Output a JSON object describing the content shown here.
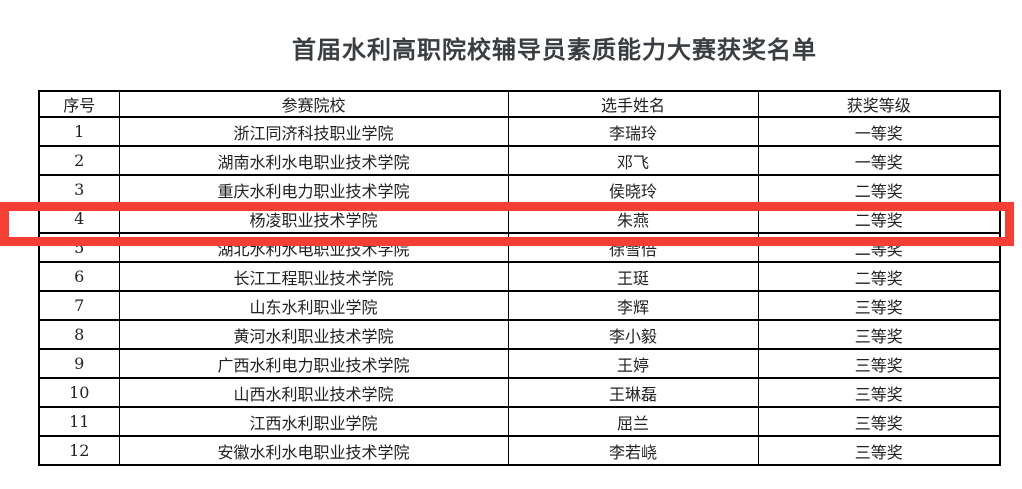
{
  "title": "首届水利高职院校辅导员素质能力大赛获奖名单",
  "table": {
    "headers": [
      "序号",
      "参赛院校",
      "选手姓名",
      "获奖等级"
    ],
    "rows": [
      {
        "no": "1",
        "school": "浙江同济科技职业学院",
        "name": "李瑞玲",
        "award": "一等奖"
      },
      {
        "no": "2",
        "school": "湖南水利水电职业技术学院",
        "name": "邓飞",
        "award": "一等奖"
      },
      {
        "no": "3",
        "school": "重庆水利电力职业技术学院",
        "name": "侯晓玲",
        "award": "二等奖"
      },
      {
        "no": "4",
        "school": "杨凌职业技术学院",
        "name": "朱燕",
        "award": "二等奖"
      },
      {
        "no": "5",
        "school": "湖北水利水电职业技术学院",
        "name": "徐雪倍",
        "award": "二等奖"
      },
      {
        "no": "6",
        "school": "长江工程职业技术学院",
        "name": "王珽",
        "award": "二等奖"
      },
      {
        "no": "7",
        "school": "山东水利职业学院",
        "name": "李辉",
        "award": "三等奖"
      },
      {
        "no": "8",
        "school": "黄河水利职业技术学院",
        "name": "李小毅",
        "award": "三等奖"
      },
      {
        "no": "9",
        "school": "广西水利电力职业技术学院",
        "name": "王婷",
        "award": "三等奖"
      },
      {
        "no": "10",
        "school": "山西水利职业技术学院",
        "name": "王琳磊",
        "award": "三等奖"
      },
      {
        "no": "11",
        "school": "江西水利职业学院",
        "name": "屈兰",
        "award": "三等奖"
      },
      {
        "no": "12",
        "school": "安徽水利水电职业技术学院",
        "name": "李若峣",
        "award": "三等奖"
      }
    ]
  },
  "highlight": {
    "highlighted_row_no": "4",
    "color": "#f53e34"
  }
}
